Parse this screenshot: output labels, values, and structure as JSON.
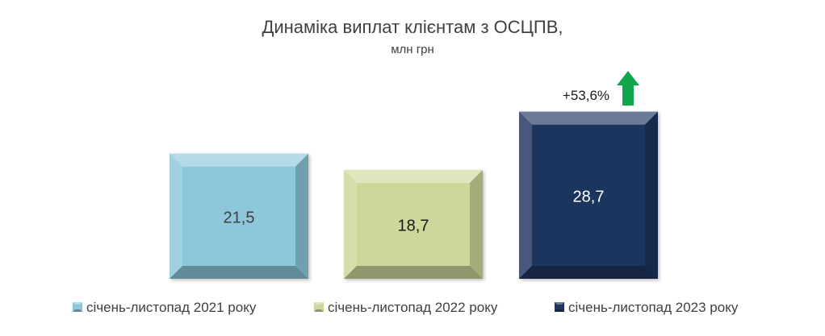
{
  "chart_data": {
    "type": "bar",
    "title": "Динаміка виплат клієнтам з ОСЦПВ,",
    "subtitle": "млн грн",
    "categories": [
      "січень-листопад 2021 року",
      "січень-листопад 2022 року",
      "січень-листопад 2023 року"
    ],
    "values": [
      21.5,
      18.7,
      28.7
    ],
    "value_labels": [
      "21,5",
      "18,7",
      "28,7"
    ],
    "colors": [
      "#8cc7da",
      "#cdd79a",
      "#1d355f"
    ],
    "label_colors": [
      "#404040",
      "#1a1a1a",
      "#ffffff"
    ],
    "annotation": {
      "text": "+53,6%",
      "arrow": "up-arrow-icon",
      "arrow_color": "#12a64c"
    },
    "ylim": [
      0,
      36
    ],
    "legend_position": "bottom",
    "grid": false
  }
}
